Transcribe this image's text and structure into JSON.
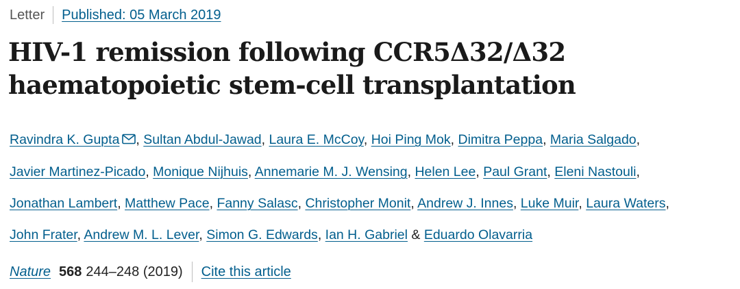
{
  "article": {
    "type": "Letter",
    "published_label": "Published: 05 March 2019",
    "title": "HIV-1 remission following CCR5Δ32/Δ32 haematopoietic stem-cell transplantation"
  },
  "authors": [
    {
      "name": "Ravindra K. Gupta",
      "sep": ", ",
      "has_email_icon": true
    },
    {
      "name": "Sultan Abdul-Jawad",
      "sep": ", "
    },
    {
      "name": "Laura E. McCoy",
      "sep": ", "
    },
    {
      "name": "Hoi Ping Mok",
      "sep": ", "
    },
    {
      "name": "Dimitra Peppa",
      "sep": ", "
    },
    {
      "name": "Maria Salgado",
      "sep": ", "
    },
    {
      "name": "Javier Martinez-Picado",
      "sep": ", "
    },
    {
      "name": "Monique Nijhuis",
      "sep": ", "
    },
    {
      "name": "Annemarie M. J. Wensing",
      "sep": ", "
    },
    {
      "name": "Helen Lee",
      "sep": ", "
    },
    {
      "name": "Paul Grant",
      "sep": ", "
    },
    {
      "name": "Eleni Nastouli",
      "sep": ", "
    },
    {
      "name": "Jonathan Lambert",
      "sep": ", "
    },
    {
      "name": "Matthew Pace",
      "sep": ", "
    },
    {
      "name": "Fanny Salasc",
      "sep": ", "
    },
    {
      "name": "Christopher Monit",
      "sep": ", "
    },
    {
      "name": "Andrew J. Innes",
      "sep": ", "
    },
    {
      "name": "Luke Muir",
      "sep": ", "
    },
    {
      "name": "Laura Waters",
      "sep": ", "
    },
    {
      "name": "John Frater",
      "sep": ", "
    },
    {
      "name": "Andrew M. L. Lever",
      "sep": ", "
    },
    {
      "name": "Simon G. Edwards",
      "sep": ", "
    },
    {
      "name": "Ian H. Gabriel",
      "sep": " & "
    },
    {
      "name": "Eduardo Olavarria",
      "sep": ""
    }
  ],
  "citation": {
    "journal": "Nature",
    "volume": "568",
    "pages_year": "244–248 (2019)",
    "cite_label": "Cite this article"
  },
  "icons": {
    "email": "mail-icon"
  },
  "colors": {
    "link": "#025e8d",
    "text": "#222222",
    "separator": "#bdbdbd"
  }
}
